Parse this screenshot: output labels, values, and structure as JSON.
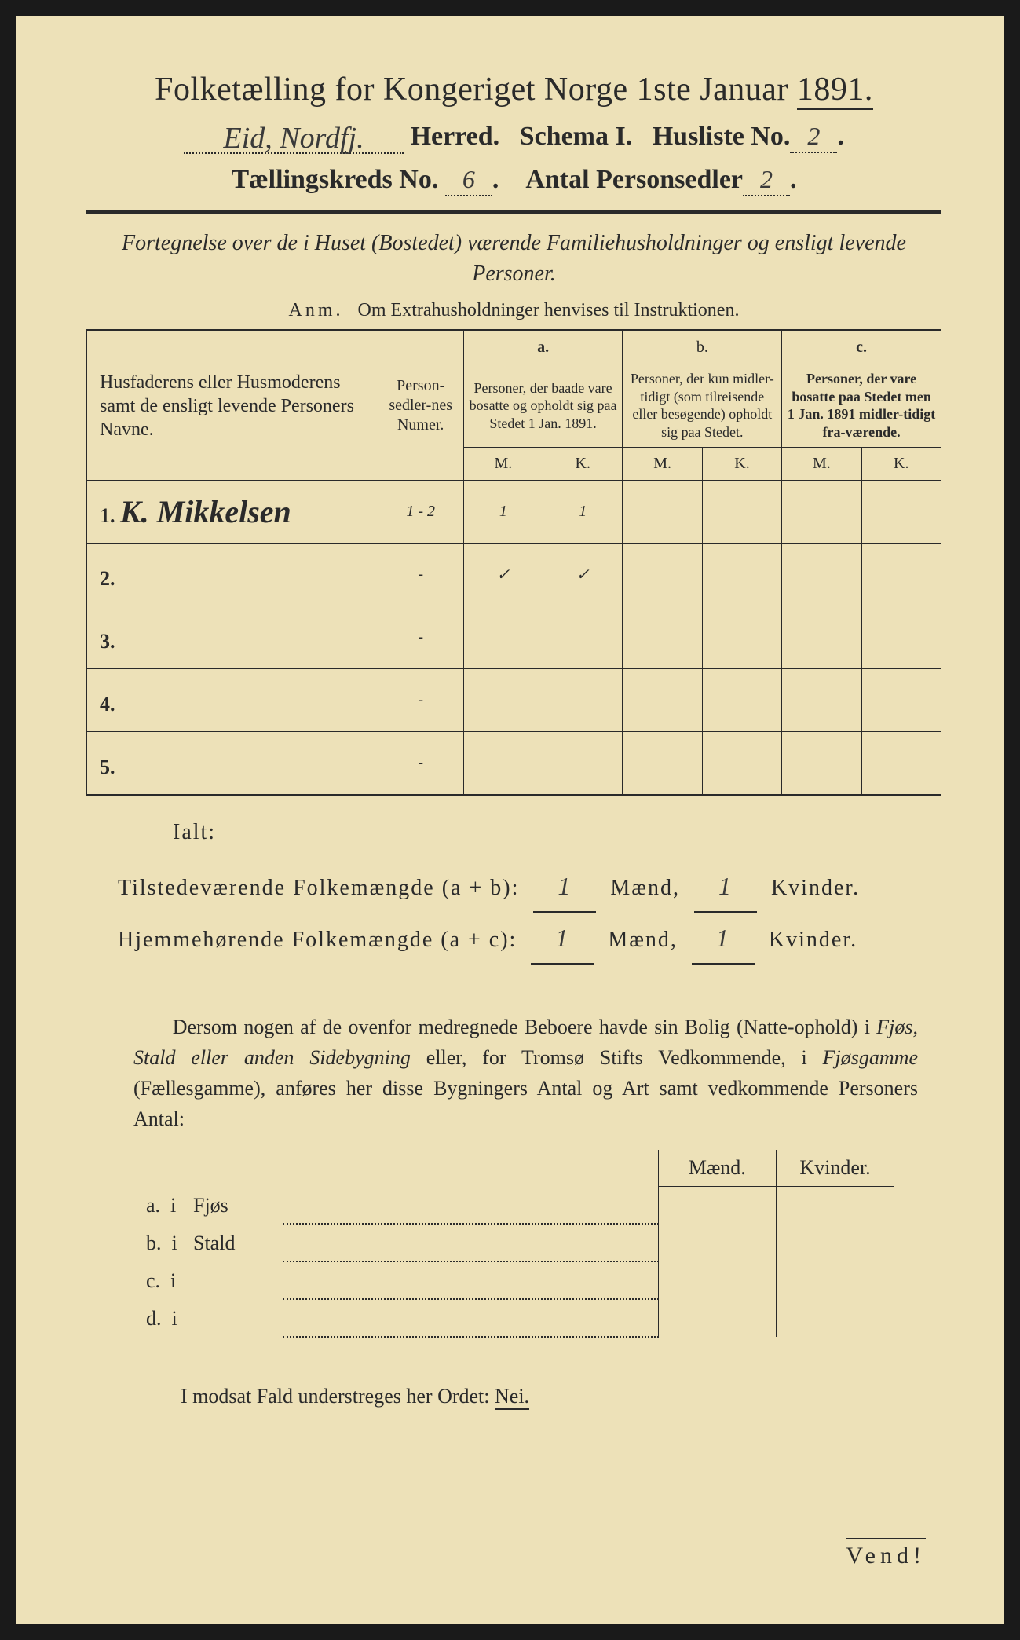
{
  "header": {
    "title_pre": "Folketælling for Kongeriget Norge 1ste Januar",
    "title_year": "1891.",
    "herred_hand": "Eid, Nordfj.",
    "herred_label": "Herred.",
    "schema_label": "Schema I.",
    "husliste_label": "Husliste No.",
    "husliste_no": "2",
    "kreds_label": "Tællingskreds No.",
    "kreds_no": "6",
    "personsedler_label": "Antal Personsedler",
    "personsedler_no": "2"
  },
  "subtitle": "Fortegnelse over de i Huset (Bostedet) værende Familiehusholdninger og ensligt levende Personer.",
  "anm_label": "Anm.",
  "anm_text": "Om Extrahusholdninger henvises til Instruktionen.",
  "table": {
    "col_name": "Husfaderens eller Husmoderens samt de ensligt levende Personers Navne.",
    "col_num": "Person-sedler-nes Numer.",
    "col_a_head": "a.",
    "col_a": "Personer, der baade vare bosatte og opholdt sig paa Stedet 1 Jan. 1891.",
    "col_b_head": "b.",
    "col_b": "Personer, der kun midler-tidigt (som tilreisende eller besøgende) opholdt sig paa Stedet.",
    "col_c_head": "c.",
    "col_c": "Personer, der vare bosatte paa Stedet men 1 Jan. 1891 midler-tidigt fra-værende.",
    "mk_m": "M.",
    "mk_k": "K.",
    "rows": [
      {
        "n": "1.",
        "name": "K. Mikkelsen",
        "num": "1 - 2",
        "am": "1",
        "ak": "1",
        "bm": "",
        "bk": "",
        "cm": "",
        "ck": ""
      },
      {
        "n": "2.",
        "name": "",
        "num": "-",
        "am": "✓",
        "ak": "✓",
        "bm": "",
        "bk": "",
        "cm": "",
        "ck": ""
      },
      {
        "n": "3.",
        "name": "",
        "num": "-",
        "am": "",
        "ak": "",
        "bm": "",
        "bk": "",
        "cm": "",
        "ck": ""
      },
      {
        "n": "4.",
        "name": "",
        "num": "-",
        "am": "",
        "ak": "",
        "bm": "",
        "bk": "",
        "cm": "",
        "ck": ""
      },
      {
        "n": "5.",
        "name": "",
        "num": "-",
        "am": "",
        "ak": "",
        "bm": "",
        "bk": "",
        "cm": "",
        "ck": ""
      }
    ]
  },
  "ialt": "Ialt:",
  "totals": {
    "line1_label": "Tilstedeværende Folkemængde (a + b):",
    "line1_m": "1",
    "line1_k": "1",
    "line2_label": "Hjemmehørende Folkemængde (a + c):",
    "line2_m": "1",
    "line2_k": "1",
    "maend": "Mænd,",
    "kvinder": "Kvinder."
  },
  "para": "Dersom nogen af de ovenfor medregnede Beboere havde sin Bolig (Natte-ophold) i Fjøs, Stald eller anden Sidebygning eller, for Tromsø Stifts Vedkommende, i Fjøsgamme (Fællesgamme), anføres her disse Bygningers Antal og Art samt vedkommende Personers Antal:",
  "small": {
    "maend": "Mænd.",
    "kvinder": "Kvinder.",
    "rows": [
      {
        "a": "a.",
        "i": "i",
        "label": "Fjøs"
      },
      {
        "a": "b.",
        "i": "i",
        "label": "Stald"
      },
      {
        "a": "c.",
        "i": "i",
        "label": ""
      },
      {
        "a": "d.",
        "i": "i",
        "label": ""
      }
    ]
  },
  "nei": "I modsat Fald understreges her Ordet:",
  "nei_word": "Nei.",
  "vend": "Vend!"
}
